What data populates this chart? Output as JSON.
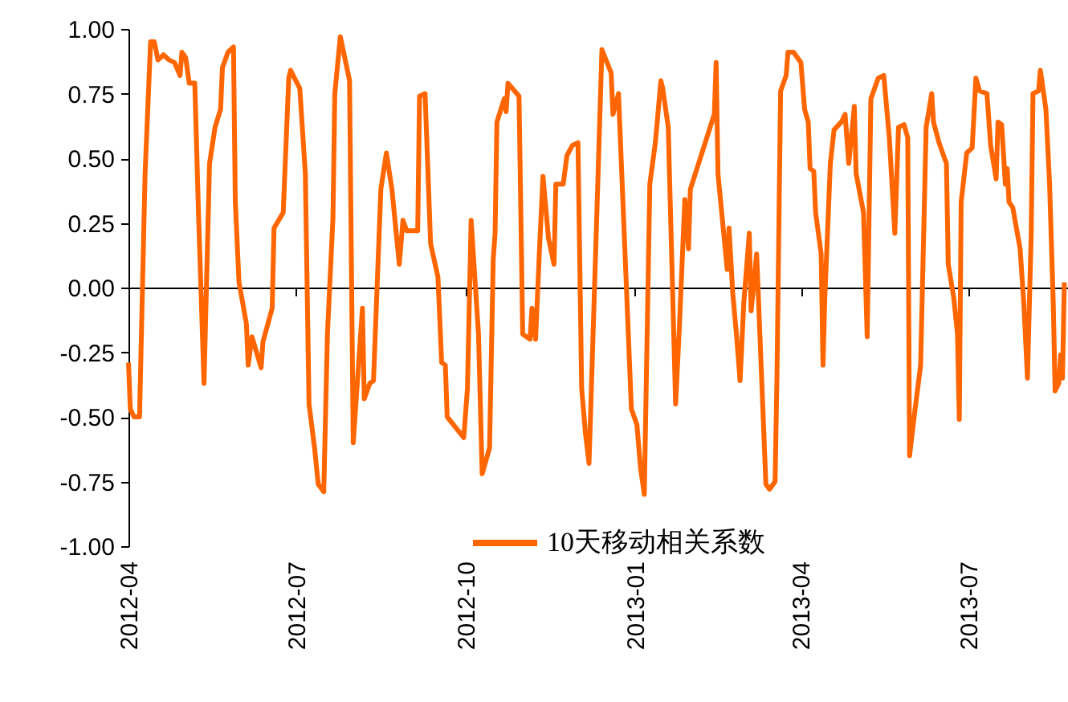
{
  "chart_data": {
    "type": "line",
    "legend": "bottom",
    "xlim": [
      "2012-04-01",
      "2013-08-24"
    ],
    "xticks": [
      "2012-04",
      "2012-07",
      "2012-10",
      "2013-01",
      "2013-04",
      "2013-07"
    ],
    "ylim": [
      -1,
      1
    ],
    "yticks": [
      {
        "value": -1,
        "label": "-1.00"
      },
      {
        "value": -0.75,
        "label": "-0.75"
      },
      {
        "value": -0.5,
        "label": "-0.50"
      },
      {
        "value": -0.25,
        "label": "-0.25"
      },
      {
        "value": 0,
        "label": "0.00"
      },
      {
        "value": 0.25,
        "label": "0.25"
      },
      {
        "value": 0.5,
        "label": "0.50"
      },
      {
        "value": 0.75,
        "label": "0.75"
      },
      {
        "value": 1,
        "label": "1.00"
      }
    ],
    "x": [
      "2012-04-01",
      "2012-04-02",
      "2012-04-04",
      "2012-04-07",
      "2012-04-10",
      "2012-04-13",
      "2012-04-15",
      "2012-04-17",
      "2012-04-20",
      "2012-04-23",
      "2012-04-26",
      "2012-04-29",
      "2012-04-30",
      "2012-05-02",
      "2012-05-04",
      "2012-05-07",
      "2012-05-09",
      "2012-05-12",
      "2012-05-15",
      "2012-05-18",
      "2012-05-21",
      "2012-05-22",
      "2012-05-25",
      "2012-05-28",
      "2012-05-29",
      "2012-05-31",
      "2012-06-04",
      "2012-06-05",
      "2012-06-07",
      "2012-06-12",
      "2012-06-13",
      "2012-06-18",
      "2012-06-19",
      "2012-06-24",
      "2012-06-27",
      "2012-06-28",
      "2012-07-03",
      "2012-07-06",
      "2012-07-08",
      "2012-07-11",
      "2012-07-13",
      "2012-07-16",
      "2012-07-18",
      "2012-07-21",
      "2012-07-22",
      "2012-07-25",
      "2012-07-30",
      "2012-08-01",
      "2012-08-06",
      "2012-08-07",
      "2012-08-10",
      "2012-08-12",
      "2012-08-16",
      "2012-08-19",
      "2012-08-22",
      "2012-08-26",
      "2012-08-28",
      "2012-08-30",
      "2012-09-05",
      "2012-09-06",
      "2012-09-09",
      "2012-09-12",
      "2012-09-16",
      "2012-09-18",
      "2012-09-20",
      "2012-09-21",
      "2012-09-30",
      "2012-10-02",
      "2012-10-04",
      "2012-10-08",
      "2012-10-10",
      "2012-10-14",
      "2012-10-16",
      "2012-10-17",
      "2012-10-18",
      "2012-10-22",
      "2012-10-23",
      "2012-10-24",
      "2012-10-30",
      "2012-11-01",
      "2012-11-05",
      "2012-11-06",
      "2012-11-08",
      "2012-11-10",
      "2012-11-12",
      "2012-11-15",
      "2012-11-18",
      "2012-11-19",
      "2012-11-23",
      "2012-11-25",
      "2012-11-28",
      "2012-12-01",
      "2012-12-03",
      "2012-12-05",
      "2012-12-07",
      "2012-12-11",
      "2012-12-14",
      "2012-12-19",
      "2012-12-20",
      "2012-12-23",
      "2012-12-30",
      "2013-01-02",
      "2013-01-04",
      "2013-01-06",
      "2013-01-09",
      "2013-01-12",
      "2013-01-15",
      "2013-01-16",
      "2013-01-19",
      "2013-01-23",
      "2013-01-25",
      "2013-01-28",
      "2013-01-30",
      "2013-01-31",
      "2013-02-13",
      "2013-02-14",
      "2013-02-15",
      "2013-02-20",
      "2013-02-21",
      "2013-02-23",
      "2013-02-25",
      "2013-02-27",
      "2013-03-01",
      "2013-03-04",
      "2013-03-05",
      "2013-03-08",
      "2013-03-13",
      "2013-03-15",
      "2013-03-18",
      "2013-03-19",
      "2013-03-21",
      "2013-03-24",
      "2013-03-25",
      "2013-03-28",
      "2013-04-01",
      "2013-04-03",
      "2013-04-05",
      "2013-04-06",
      "2013-04-08",
      "2013-04-09",
      "2013-04-12",
      "2013-04-13",
      "2013-04-14",
      "2013-04-17",
      "2013-04-19",
      "2013-04-23",
      "2013-04-25",
      "2013-04-27",
      "2013-04-30",
      "2013-05-01",
      "2013-05-05",
      "2013-05-07",
      "2013-05-09",
      "2013-05-13",
      "2013-05-16",
      "2013-05-19",
      "2013-05-22",
      "2013-05-24",
      "2013-05-27",
      "2013-05-29",
      "2013-05-30",
      "2013-06-02",
      "2013-06-05",
      "2013-06-08",
      "2013-06-11",
      "2013-06-12",
      "2013-06-15",
      "2013-06-19",
      "2013-06-20",
      "2013-06-23",
      "2013-06-25",
      "2013-06-26",
      "2013-06-27",
      "2013-06-30",
      "2013-07-03",
      "2013-07-05",
      "2013-07-07",
      "2013-07-11",
      "2013-07-13",
      "2013-07-16",
      "2013-07-17",
      "2013-07-19",
      "2013-07-21",
      "2013-07-22",
      "2013-07-23",
      "2013-07-25",
      "2013-07-29",
      "2013-07-31",
      "2013-08-02",
      "2013-08-04",
      "2013-08-05",
      "2013-08-08",
      "2013-08-09",
      "2013-08-12",
      "2013-08-14",
      "2013-08-16",
      "2013-08-17",
      "2013-08-19",
      "2013-08-20",
      "2013-08-21",
      "2013-08-22"
    ],
    "series": [
      {
        "name": "10天移动相关系数",
        "color": "#ff6600",
        "values": [
          -0.29,
          -0.47,
          -0.5,
          -0.5,
          0.44,
          0.95,
          0.95,
          0.88,
          0.9,
          0.88,
          0.87,
          0.82,
          0.91,
          0.89,
          0.79,
          0.79,
          0.29,
          -0.37,
          0.48,
          0.62,
          0.69,
          0.85,
          0.91,
          0.93,
          0.33,
          0.02,
          -0.14,
          -0.3,
          -0.19,
          -0.31,
          -0.21,
          -0.08,
          0.23,
          0.29,
          0.81,
          0.84,
          0.77,
          0.44,
          -0.45,
          -0.62,
          -0.76,
          -0.79,
          -0.18,
          0.27,
          0.75,
          0.97,
          0.8,
          -0.6,
          -0.08,
          -0.43,
          -0.37,
          -0.36,
          0.38,
          0.52,
          0.38,
          0.09,
          0.26,
          0.22,
          0.22,
          0.74,
          0.75,
          0.17,
          0.04,
          -0.29,
          -0.3,
          -0.5,
          -0.58,
          -0.39,
          0.26,
          -0.18,
          -0.72,
          -0.62,
          0.11,
          0.21,
          0.64,
          0.73,
          0.68,
          0.79,
          0.74,
          -0.18,
          -0.2,
          -0.08,
          -0.2,
          0.13,
          0.43,
          0.19,
          0.09,
          0.4,
          0.4,
          0.51,
          0.55,
          0.56,
          -0.39,
          -0.56,
          -0.68,
          0.23,
          0.92,
          0.83,
          0.67,
          0.75,
          -0.47,
          -0.53,
          -0.7,
          -0.8,
          0.4,
          0.56,
          0.8,
          0.77,
          0.62,
          -0.45,
          -0.16,
          0.34,
          0.15,
          0.38,
          0.67,
          0.87,
          0.44,
          0.07,
          0.23,
          -0.02,
          -0.18,
          -0.36,
          -0.06,
          0.21,
          -0.09,
          0.13,
          -0.76,
          -0.78,
          -0.75,
          -0.35,
          0.76,
          0.82,
          0.91,
          0.91,
          0.87,
          0.69,
          0.64,
          0.46,
          0.45,
          0.29,
          0.13,
          -0.3,
          -0.04,
          0.48,
          0.61,
          0.64,
          0.67,
          0.48,
          0.7,
          0.44,
          0.29,
          -0.19,
          0.73,
          0.81,
          0.82,
          0.58,
          0.21,
          0.62,
          0.63,
          0.58,
          -0.65,
          -0.47,
          -0.3,
          0.62,
          0.75,
          0.64,
          0.56,
          0.48,
          0.09,
          -0.04,
          -0.18,
          -0.51,
          0.33,
          0.52,
          0.54,
          0.81,
          0.76,
          0.75,
          0.55,
          0.42,
          0.64,
          0.63,
          0.4,
          0.46,
          0.33,
          0.31,
          0.15,
          -0.06,
          -0.35,
          0.2,
          0.75,
          0.76,
          0.84,
          0.69,
          0.4,
          -0.06,
          -0.4,
          -0.37,
          -0.26,
          -0.35,
          0.02
        ]
      }
    ]
  }
}
